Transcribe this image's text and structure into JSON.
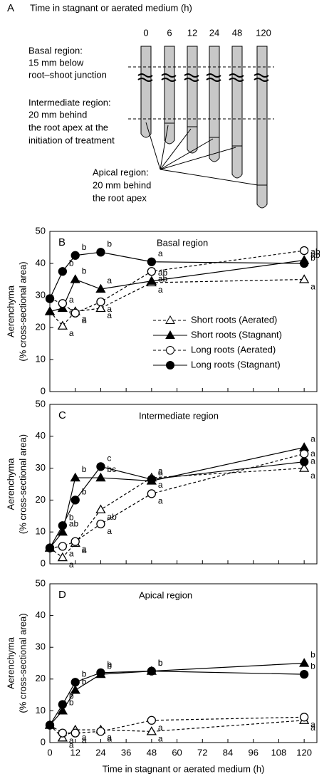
{
  "diagram": {
    "label": "A",
    "title": "Time in stagnant or aerated medium (h)",
    "times": [
      "0",
      "6",
      "12",
      "24",
      "48",
      "120"
    ],
    "basal": [
      "Basal region:",
      "15 mm below",
      "root–shoot junction"
    ],
    "intermediate": [
      "Intermediate region:",
      "20 mm behind",
      "the root apex at the",
      "initiation of treatment"
    ],
    "apical": [
      "Apical region:",
      "20 mm behind",
      "the root apex"
    ]
  },
  "chart_data": [
    {
      "type": "line",
      "label": "B",
      "title": "Basal region",
      "ylabel": [
        "Aerenchyma",
        "(% cross-sectional area)"
      ],
      "xlim": [
        0,
        126
      ],
      "xticks": [
        0,
        12,
        24,
        36,
        48,
        60,
        72,
        84,
        96,
        108,
        120
      ],
      "ylim": [
        0,
        50
      ],
      "yticks": [
        0,
        10,
        20,
        30,
        40,
        50
      ],
      "legend": "lower right",
      "series": [
        {
          "name": "Short roots (Aerated)",
          "color": "#000000",
          "marker": "triangle",
          "filled": false,
          "dashed": true,
          "x": [
            0,
            6,
            12,
            24,
            48,
            120
          ],
          "values": [
            25,
            20.5,
            25,
            26,
            34,
            35
          ],
          "letters": [
            null,
            "a",
            "a",
            "a",
            "a",
            "a"
          ]
        },
        {
          "name": "Short roots (Stagnant)",
          "color": "#000000",
          "marker": "triangle",
          "filled": true,
          "dashed": false,
          "x": [
            0,
            6,
            12,
            24,
            48,
            120
          ],
          "values": [
            25,
            26,
            35,
            32,
            34.5,
            41
          ],
          "letters": [
            null,
            "a",
            "b",
            "a",
            "ab",
            "ab"
          ]
        },
        {
          "name": "Long roots (Aerated)",
          "color": "#000000",
          "marker": "circle",
          "filled": false,
          "dashed": true,
          "x": [
            0,
            6,
            12,
            24,
            48,
            120
          ],
          "values": [
            29,
            27.5,
            24.5,
            28,
            37.5,
            44
          ],
          "letters": [
            null,
            "a",
            "a",
            "a",
            "ab",
            "b"
          ]
        },
        {
          "name": "Long roots (Stagnant)",
          "color": "#000000",
          "marker": "circle",
          "filled": true,
          "dashed": false,
          "x": [
            0,
            6,
            12,
            24,
            48,
            120
          ],
          "values": [
            29,
            37.5,
            42.5,
            43.5,
            40.5,
            40
          ],
          "letters": [
            null,
            "b",
            "b",
            "b",
            "a",
            "ab"
          ]
        }
      ]
    },
    {
      "type": "line",
      "label": "C",
      "title": "Intermediate region",
      "ylabel": [
        "Aerenchyma",
        "(% cross-sectional area)"
      ],
      "xlim": [
        0,
        126
      ],
      "xticks": [
        0,
        12,
        24,
        36,
        48,
        60,
        72,
        84,
        96,
        108,
        120
      ],
      "ylim": [
        0,
        50
      ],
      "yticks": [
        0,
        10,
        20,
        30,
        40,
        50
      ],
      "series": [
        {
          "color": "#000000",
          "marker": "triangle",
          "filled": false,
          "dashed": true,
          "x": [
            0,
            6,
            12,
            24,
            48,
            120
          ],
          "values": [
            5,
            2,
            6.5,
            17,
            27,
            30
          ],
          "letters": [
            null,
            "a",
            "a",
            "ab",
            "a",
            "a"
          ]
        },
        {
          "color": "#000000",
          "marker": "triangle",
          "filled": true,
          "dashed": false,
          "x": [
            0,
            6,
            12,
            24,
            48,
            120
          ],
          "values": [
            5,
            10,
            27,
            27,
            26,
            36.5
          ],
          "letters": [
            null,
            "ab",
            "b",
            "bc",
            "a",
            "a"
          ]
        },
        {
          "color": "#000000",
          "marker": "circle",
          "filled": false,
          "dashed": true,
          "x": [
            0,
            6,
            12,
            24,
            48,
            120
          ],
          "values": [
            5,
            5.5,
            7,
            12.5,
            22,
            34.5
          ],
          "letters": [
            null,
            "a",
            "a",
            "a",
            "a",
            "a"
          ]
        },
        {
          "color": "#000000",
          "marker": "circle",
          "filled": true,
          "dashed": false,
          "x": [
            0,
            6,
            12,
            24,
            48,
            120
          ],
          "values": [
            5,
            12,
            20,
            30.5,
            26.5,
            32
          ],
          "letters": [
            null,
            "b",
            "b",
            "c",
            "a",
            "a"
          ]
        }
      ]
    },
    {
      "type": "line",
      "label": "D",
      "title": "Apical region",
      "ylabel": [
        "Aerenchyma",
        "(% cross-sectional area)"
      ],
      "xlabel": "Time in stagnant or aerated medium (h)",
      "xlim": [
        0,
        126
      ],
      "xticks": [
        0,
        12,
        24,
        36,
        48,
        60,
        72,
        84,
        96,
        108,
        120
      ],
      "ylim": [
        0,
        50
      ],
      "yticks": [
        0,
        10,
        20,
        30,
        40,
        50
      ],
      "series": [
        {
          "color": "#000000",
          "marker": "triangle",
          "filled": false,
          "dashed": true,
          "x": [
            0,
            6,
            12,
            24,
            48,
            120
          ],
          "values": [
            5.5,
            1.5,
            4,
            4,
            3.5,
            7
          ],
          "letters": [
            null,
            "a",
            "a",
            "a",
            "a",
            "a"
          ]
        },
        {
          "color": "#000000",
          "marker": "triangle",
          "filled": true,
          "dashed": false,
          "x": [
            0,
            6,
            12,
            24,
            48,
            120
          ],
          "values": [
            5.5,
            10,
            16.5,
            21.5,
            22.5,
            25
          ],
          "letters": [
            null,
            "b",
            "b",
            "b",
            "b",
            "b"
          ]
        },
        {
          "color": "#000000",
          "marker": "circle",
          "filled": false,
          "dashed": true,
          "x": [
            0,
            6,
            12,
            24,
            48,
            120
          ],
          "values": [
            5.5,
            3,
            3,
            3.5,
            7,
            8
          ],
          "letters": [
            null,
            "a",
            "a",
            "a",
            "a",
            "a"
          ]
        },
        {
          "color": "#000000",
          "marker": "circle",
          "filled": true,
          "dashed": false,
          "x": [
            0,
            6,
            12,
            24,
            48,
            120
          ],
          "values": [
            5.5,
            12,
            19,
            22,
            22.5,
            21.5
          ],
          "letters": [
            null,
            "b",
            "b",
            "b",
            "b",
            "b"
          ]
        }
      ]
    }
  ]
}
